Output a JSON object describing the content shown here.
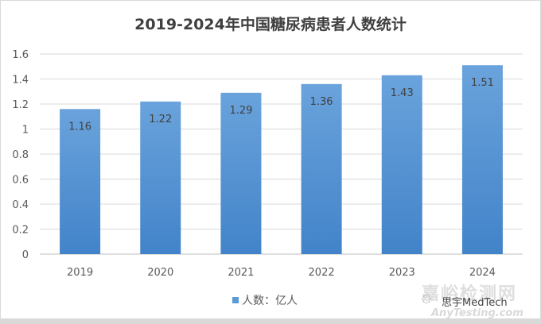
{
  "chart_data": {
    "type": "bar",
    "title": "2019-2024年中国糖尿病患者人数统计",
    "categories": [
      "2019",
      "2020",
      "2021",
      "2022",
      "2023",
      "2024"
    ],
    "series": [
      {
        "name": "人数：亿人",
        "values": [
          1.16,
          1.22,
          1.29,
          1.36,
          1.43,
          1.51
        ]
      }
    ],
    "data_labels": [
      "1.16",
      "1.22",
      "1.29",
      "1.36",
      "1.43",
      "1.51"
    ],
    "ylim": [
      0,
      1.6
    ],
    "yticks": [
      "0",
      "0.2",
      "0.4",
      "0.6",
      "0.8",
      "1",
      "1.2",
      "1.4",
      "1.6"
    ],
    "grid": true,
    "legend": "bottom",
    "bar_color": "#5b9bd5"
  },
  "watermarks": {
    "site": "嘉峪检测网",
    "site_url": "AnyTesting.com",
    "account": "思宇MedTech"
  }
}
